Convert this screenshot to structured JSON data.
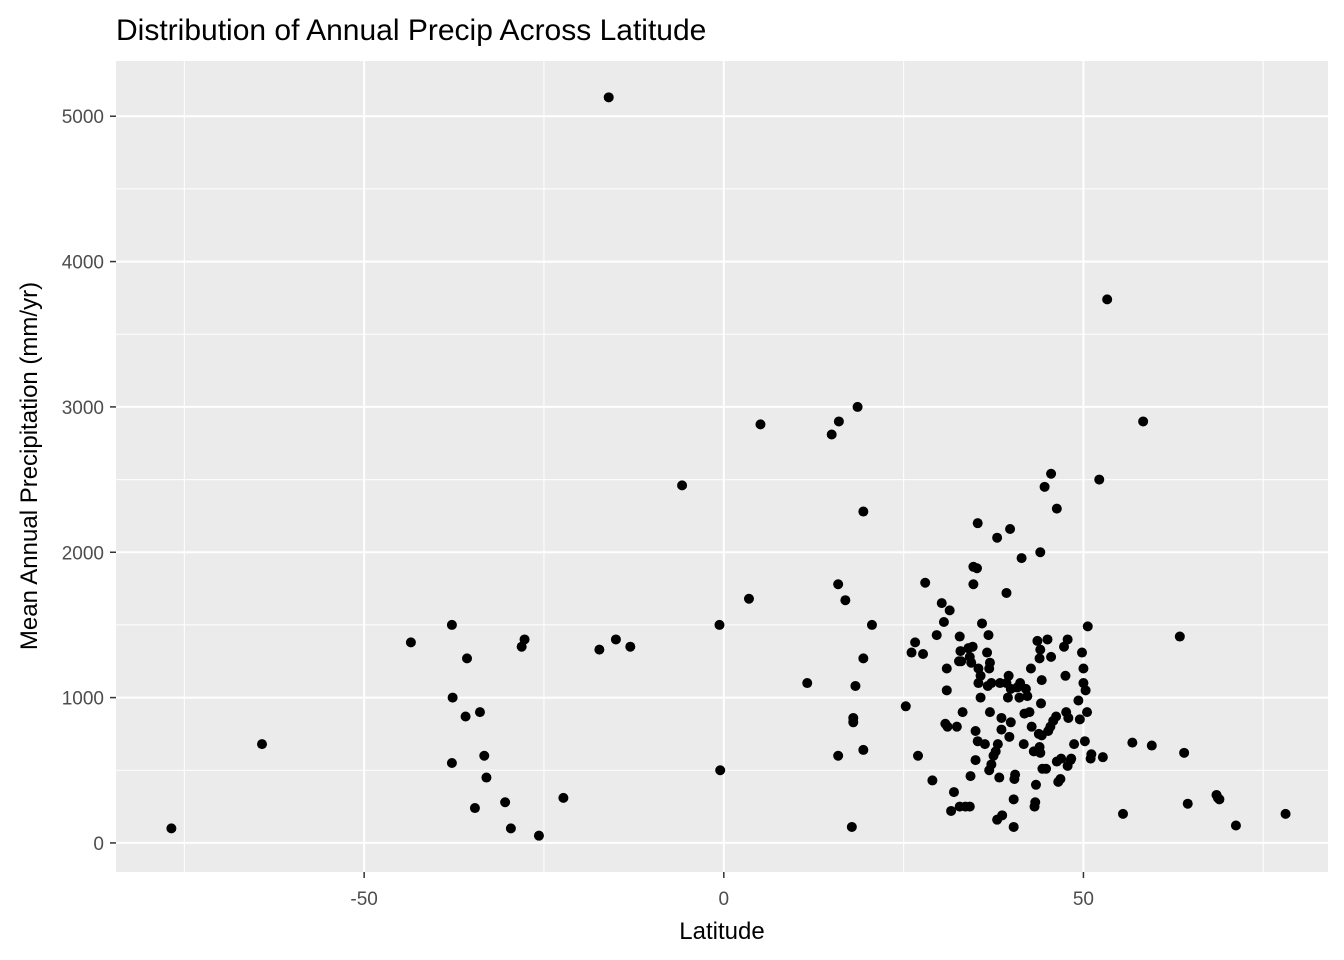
{
  "chart_data": {
    "type": "scatter",
    "title": "Distribution of Annual Precip Across Latitude",
    "xlabel": "Latitude",
    "ylabel": "Mean Annual Precipitation (mm/yr)",
    "xlim": [
      -84.5,
      84
    ],
    "ylim": [
      -200,
      5380
    ],
    "x_ticks": [
      -50,
      0,
      50
    ],
    "y_ticks": [
      0,
      1000,
      2000,
      3000,
      4000,
      5000
    ],
    "x_tick_labels": [
      "-50",
      "0",
      "50"
    ],
    "y_tick_labels": [
      "0",
      "1000",
      "2000",
      "3000",
      "4000",
      "5000"
    ],
    "grid": true,
    "legend": "none",
    "colors": {
      "panel": "#ebebeb",
      "grid": "#ffffff",
      "point": "#000000"
    },
    "points": [
      [
        -76.8,
        100
      ],
      [
        -64.2,
        680
      ],
      [
        -43.5,
        1380
      ],
      [
        -37.8,
        1500
      ],
      [
        -37.7,
        1000
      ],
      [
        -37.8,
        550
      ],
      [
        -35.7,
        1270
      ],
      [
        -35.9,
        870
      ],
      [
        -33.9,
        900
      ],
      [
        -33.3,
        600
      ],
      [
        -33.0,
        450
      ],
      [
        -34.6,
        240
      ],
      [
        -30.4,
        280
      ],
      [
        -29.6,
        100
      ],
      [
        -28.1,
        1350
      ],
      [
        -27.7,
        1400
      ],
      [
        -25.7,
        50
      ],
      [
        -22.3,
        310
      ],
      [
        -17.3,
        1330
      ],
      [
        -16.0,
        5130
      ],
      [
        -15.0,
        1400
      ],
      [
        -13.0,
        1350
      ],
      [
        -5.8,
        2460
      ],
      [
        -0.6,
        1500
      ],
      [
        -0.5,
        500
      ],
      [
        3.5,
        1680
      ],
      [
        5.1,
        2880
      ],
      [
        11.6,
        1100
      ],
      [
        15.0,
        2810
      ],
      [
        16.0,
        2900
      ],
      [
        18.6,
        3000
      ],
      [
        15.9,
        1780
      ],
      [
        16.9,
        1670
      ],
      [
        19.4,
        2280
      ],
      [
        20.6,
        1500
      ],
      [
        19.4,
        1270
      ],
      [
        18.3,
        1080
      ],
      [
        18.0,
        860
      ],
      [
        18.0,
        830
      ],
      [
        15.9,
        600
      ],
      [
        19.4,
        640
      ],
      [
        17.8,
        110
      ],
      [
        25.3,
        940
      ],
      [
        26.1,
        1310
      ],
      [
        26.6,
        1380
      ],
      [
        27.7,
        1300
      ],
      [
        28.0,
        1790
      ],
      [
        27.0,
        600
      ],
      [
        29.0,
        430
      ],
      [
        29.6,
        1430
      ],
      [
        30.3,
        1650
      ],
      [
        30.6,
        1520
      ],
      [
        31.4,
        1600
      ],
      [
        31.0,
        1200
      ],
      [
        31.0,
        1050
      ],
      [
        30.8,
        820
      ],
      [
        31.1,
        800
      ],
      [
        31.6,
        220
      ],
      [
        32.0,
        350
      ],
      [
        32.4,
        800
      ],
      [
        32.7,
        1250
      ],
      [
        32.8,
        1420
      ],
      [
        32.9,
        1320
      ],
      [
        33.0,
        1250
      ],
      [
        33.2,
        900
      ],
      [
        32.8,
        250
      ],
      [
        33.6,
        250
      ],
      [
        34.2,
        250
      ],
      [
        34.0,
        1340
      ],
      [
        34.2,
        1280
      ],
      [
        34.3,
        460
      ],
      [
        34.4,
        1240
      ],
      [
        34.6,
        1350
      ],
      [
        34.7,
        1780
      ],
      [
        34.7,
        1900
      ],
      [
        35.2,
        1890
      ],
      [
        35.3,
        2200
      ],
      [
        35.4,
        1200
      ],
      [
        35.7,
        1150
      ],
      [
        35.9,
        1510
      ],
      [
        35.4,
        1100
      ],
      [
        35.0,
        770
      ],
      [
        35.0,
        570
      ],
      [
        35.3,
        700
      ],
      [
        35.7,
        1000
      ],
      [
        36.3,
        680
      ],
      [
        36.8,
        1430
      ],
      [
        36.6,
        1310
      ],
      [
        36.9,
        1200
      ],
      [
        37.0,
        1240
      ],
      [
        37.2,
        1100
      ],
      [
        37.0,
        900
      ],
      [
        36.7,
        1080
      ],
      [
        36.9,
        500
      ],
      [
        37.2,
        540
      ],
      [
        37.5,
        600
      ],
      [
        37.8,
        630
      ],
      [
        38.1,
        680
      ],
      [
        38.0,
        2100
      ],
      [
        38.4,
        1100
      ],
      [
        38.6,
        860
      ],
      [
        38.6,
        780
      ],
      [
        38.3,
        450
      ],
      [
        38.0,
        160
      ],
      [
        38.7,
        190
      ],
      [
        39.3,
        1720
      ],
      [
        39.5,
        1000
      ],
      [
        39.3,
        1100
      ],
      [
        39.6,
        1150
      ],
      [
        39.8,
        2160
      ],
      [
        39.9,
        1060
      ],
      [
        39.7,
        730
      ],
      [
        39.9,
        830
      ],
      [
        40.5,
        470
      ],
      [
        40.4,
        440
      ],
      [
        40.3,
        300
      ],
      [
        40.3,
        110
      ],
      [
        40.8,
        1070
      ],
      [
        41.1,
        1000
      ],
      [
        41.4,
        1960
      ],
      [
        41.2,
        1100
      ],
      [
        41.7,
        680
      ],
      [
        41.8,
        890
      ],
      [
        42.0,
        1060
      ],
      [
        42.2,
        1010
      ],
      [
        42.5,
        900
      ],
      [
        42.7,
        1200
      ],
      [
        42.8,
        800
      ],
      [
        43.1,
        630
      ],
      [
        43.3,
        280
      ],
      [
        43.2,
        250
      ],
      [
        43.4,
        400
      ],
      [
        43.8,
        750
      ],
      [
        43.9,
        660
      ],
      [
        43.6,
        1390
      ],
      [
        43.9,
        1270
      ],
      [
        44.2,
        1120
      ],
      [
        44.0,
        2000
      ],
      [
        44.0,
        1330
      ],
      [
        44.1,
        960
      ],
      [
        44.2,
        740
      ],
      [
        44.0,
        620
      ],
      [
        44.3,
        510
      ],
      [
        44.8,
        510
      ],
      [
        44.6,
        2450
      ],
      [
        45.0,
        1400
      ],
      [
        45.5,
        2540
      ],
      [
        45.1,
        770
      ],
      [
        45.4,
        800
      ],
      [
        45.5,
        1280
      ],
      [
        45.8,
        840
      ],
      [
        46.2,
        870
      ],
      [
        46.3,
        2300
      ],
      [
        46.3,
        560
      ],
      [
        46.5,
        420
      ],
      [
        46.8,
        440
      ],
      [
        46.9,
        580
      ],
      [
        47.3,
        1350
      ],
      [
        47.5,
        1150
      ],
      [
        47.8,
        1400
      ],
      [
        47.6,
        900
      ],
      [
        47.9,
        860
      ],
      [
        47.8,
        530
      ],
      [
        48.2,
        570
      ],
      [
        48.3,
        580
      ],
      [
        48.7,
        680
      ],
      [
        49.3,
        980
      ],
      [
        49.5,
        850
      ],
      [
        49.8,
        1310
      ],
      [
        50.0,
        1200
      ],
      [
        50.3,
        1050
      ],
      [
        50.0,
        1100
      ],
      [
        50.6,
        1490
      ],
      [
        50.5,
        900
      ],
      [
        50.2,
        700
      ],
      [
        51.0,
        580
      ],
      [
        51.1,
        610
      ],
      [
        52.2,
        2500
      ],
      [
        52.7,
        590
      ],
      [
        53.3,
        3740
      ],
      [
        55.5,
        200
      ],
      [
        56.8,
        690
      ],
      [
        58.3,
        2900
      ],
      [
        59.5,
        670
      ],
      [
        63.4,
        1420
      ],
      [
        64.0,
        620
      ],
      [
        64.5,
        270
      ],
      [
        68.5,
        330
      ],
      [
        68.7,
        310
      ],
      [
        68.9,
        300
      ],
      [
        71.2,
        120
      ],
      [
        78.1,
        200
      ]
    ]
  }
}
